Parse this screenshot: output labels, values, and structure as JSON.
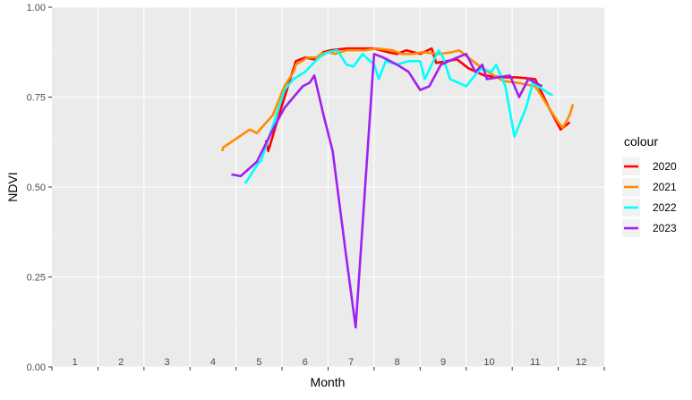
{
  "chart_data": {
    "type": "line",
    "xlabel": "Month",
    "ylabel": "NDVI",
    "ylim": [
      0,
      1
    ],
    "xlim": [
      0.5,
      12.5
    ],
    "y_ticks": [
      "0.00",
      "0.25",
      "0.50",
      "0.75",
      "1.00"
    ],
    "y_tick_values": [
      0,
      0.25,
      0.5,
      0.75,
      1.0
    ],
    "month_labels": [
      "1",
      "2",
      "3",
      "4",
      "5",
      "6",
      "7",
      "8",
      "9",
      "10",
      "11",
      "12"
    ],
    "grid": true,
    "legend_title": "colour",
    "legend_position": "right",
    "series": [
      {
        "name": "2020",
        "color": "#ff0000",
        "points": [
          [
            5.15,
            0.63
          ],
          [
            5.2,
            0.6
          ],
          [
            5.48,
            0.72
          ],
          [
            5.8,
            0.85
          ],
          [
            6.0,
            0.86
          ],
          [
            6.2,
            0.855
          ],
          [
            6.4,
            0.875
          ],
          [
            6.55,
            0.88
          ],
          [
            6.9,
            0.885
          ],
          [
            7.15,
            0.885
          ],
          [
            7.5,
            0.885
          ],
          [
            7.8,
            0.875
          ],
          [
            8.0,
            0.87
          ],
          [
            8.2,
            0.88
          ],
          [
            8.5,
            0.87
          ],
          [
            8.75,
            0.885
          ],
          [
            8.85,
            0.845
          ],
          [
            9.3,
            0.855
          ],
          [
            9.55,
            0.83
          ],
          [
            9.9,
            0.81
          ],
          [
            10.3,
            0.805
          ],
          [
            10.6,
            0.805
          ],
          [
            11.0,
            0.8
          ],
          [
            11.3,
            0.72
          ],
          [
            11.55,
            0.66
          ],
          [
            11.75,
            0.68
          ]
        ]
      },
      {
        "name": "2021",
        "color": "#ff8c00",
        "points": [
          [
            4.2,
            0.6
          ],
          [
            4.22,
            0.61
          ],
          [
            4.8,
            0.66
          ],
          [
            4.95,
            0.65
          ],
          [
            5.3,
            0.7
          ],
          [
            5.55,
            0.78
          ],
          [
            5.75,
            0.82
          ],
          [
            5.8,
            0.84
          ],
          [
            6.05,
            0.86
          ],
          [
            6.25,
            0.86
          ],
          [
            6.35,
            0.87
          ],
          [
            6.5,
            0.875
          ],
          [
            6.65,
            0.87
          ],
          [
            6.9,
            0.88
          ],
          [
            7.3,
            0.88
          ],
          [
            7.55,
            0.885
          ],
          [
            7.9,
            0.88
          ],
          [
            8.1,
            0.87
          ],
          [
            8.35,
            0.87
          ],
          [
            8.55,
            0.875
          ],
          [
            8.9,
            0.87
          ],
          [
            9.2,
            0.875
          ],
          [
            9.35,
            0.88
          ],
          [
            9.55,
            0.86
          ],
          [
            9.85,
            0.83
          ],
          [
            10.3,
            0.795
          ],
          [
            10.6,
            0.79
          ],
          [
            11.0,
            0.78
          ],
          [
            11.3,
            0.72
          ],
          [
            11.5,
            0.68
          ],
          [
            11.6,
            0.665
          ],
          [
            11.75,
            0.7
          ],
          [
            11.82,
            0.73
          ]
        ]
      },
      {
        "name": "2022",
        "color": "#00ffff",
        "points": [
          [
            4.7,
            0.51
          ],
          [
            4.95,
            0.56
          ],
          [
            5.05,
            0.575
          ],
          [
            5.3,
            0.67
          ],
          [
            5.55,
            0.77
          ],
          [
            5.75,
            0.8
          ],
          [
            6.0,
            0.82
          ],
          [
            6.3,
            0.86
          ],
          [
            6.5,
            0.875
          ],
          [
            6.7,
            0.88
          ],
          [
            6.9,
            0.84
          ],
          [
            7.05,
            0.835
          ],
          [
            7.25,
            0.87
          ],
          [
            7.5,
            0.84
          ],
          [
            7.6,
            0.8
          ],
          [
            7.75,
            0.85
          ],
          [
            8.0,
            0.84
          ],
          [
            8.25,
            0.85
          ],
          [
            8.5,
            0.85
          ],
          [
            8.6,
            0.8
          ],
          [
            8.9,
            0.88
          ],
          [
            9.0,
            0.86
          ],
          [
            9.15,
            0.8
          ],
          [
            9.5,
            0.78
          ],
          [
            9.75,
            0.82
          ],
          [
            9.85,
            0.83
          ],
          [
            10.05,
            0.82
          ],
          [
            10.15,
            0.84
          ],
          [
            10.35,
            0.78
          ],
          [
            10.55,
            0.64
          ],
          [
            10.8,
            0.72
          ],
          [
            10.95,
            0.79
          ],
          [
            11.3,
            0.76
          ],
          [
            11.38,
            0.755
          ]
        ]
      },
      {
        "name": "2023",
        "color": "#a020f0",
        "points": [
          [
            4.4,
            0.535
          ],
          [
            4.6,
            0.53
          ],
          [
            4.95,
            0.57
          ],
          [
            5.3,
            0.66
          ],
          [
            5.55,
            0.72
          ],
          [
            5.95,
            0.78
          ],
          [
            6.1,
            0.79
          ],
          [
            6.2,
            0.81
          ],
          [
            6.4,
            0.7
          ],
          [
            6.6,
            0.6
          ],
          [
            6.9,
            0.3
          ],
          [
            7.1,
            0.11
          ],
          [
            7.5,
            0.87
          ],
          [
            7.7,
            0.86
          ],
          [
            8.0,
            0.84
          ],
          [
            8.25,
            0.82
          ],
          [
            8.5,
            0.77
          ],
          [
            8.7,
            0.78
          ],
          [
            8.95,
            0.84
          ],
          [
            9.3,
            0.86
          ],
          [
            9.5,
            0.87
          ],
          [
            9.7,
            0.82
          ],
          [
            9.85,
            0.84
          ],
          [
            9.95,
            0.8
          ],
          [
            10.2,
            0.805
          ],
          [
            10.45,
            0.81
          ],
          [
            10.65,
            0.75
          ],
          [
            10.85,
            0.8
          ],
          [
            11.15,
            0.78
          ]
        ]
      }
    ]
  }
}
